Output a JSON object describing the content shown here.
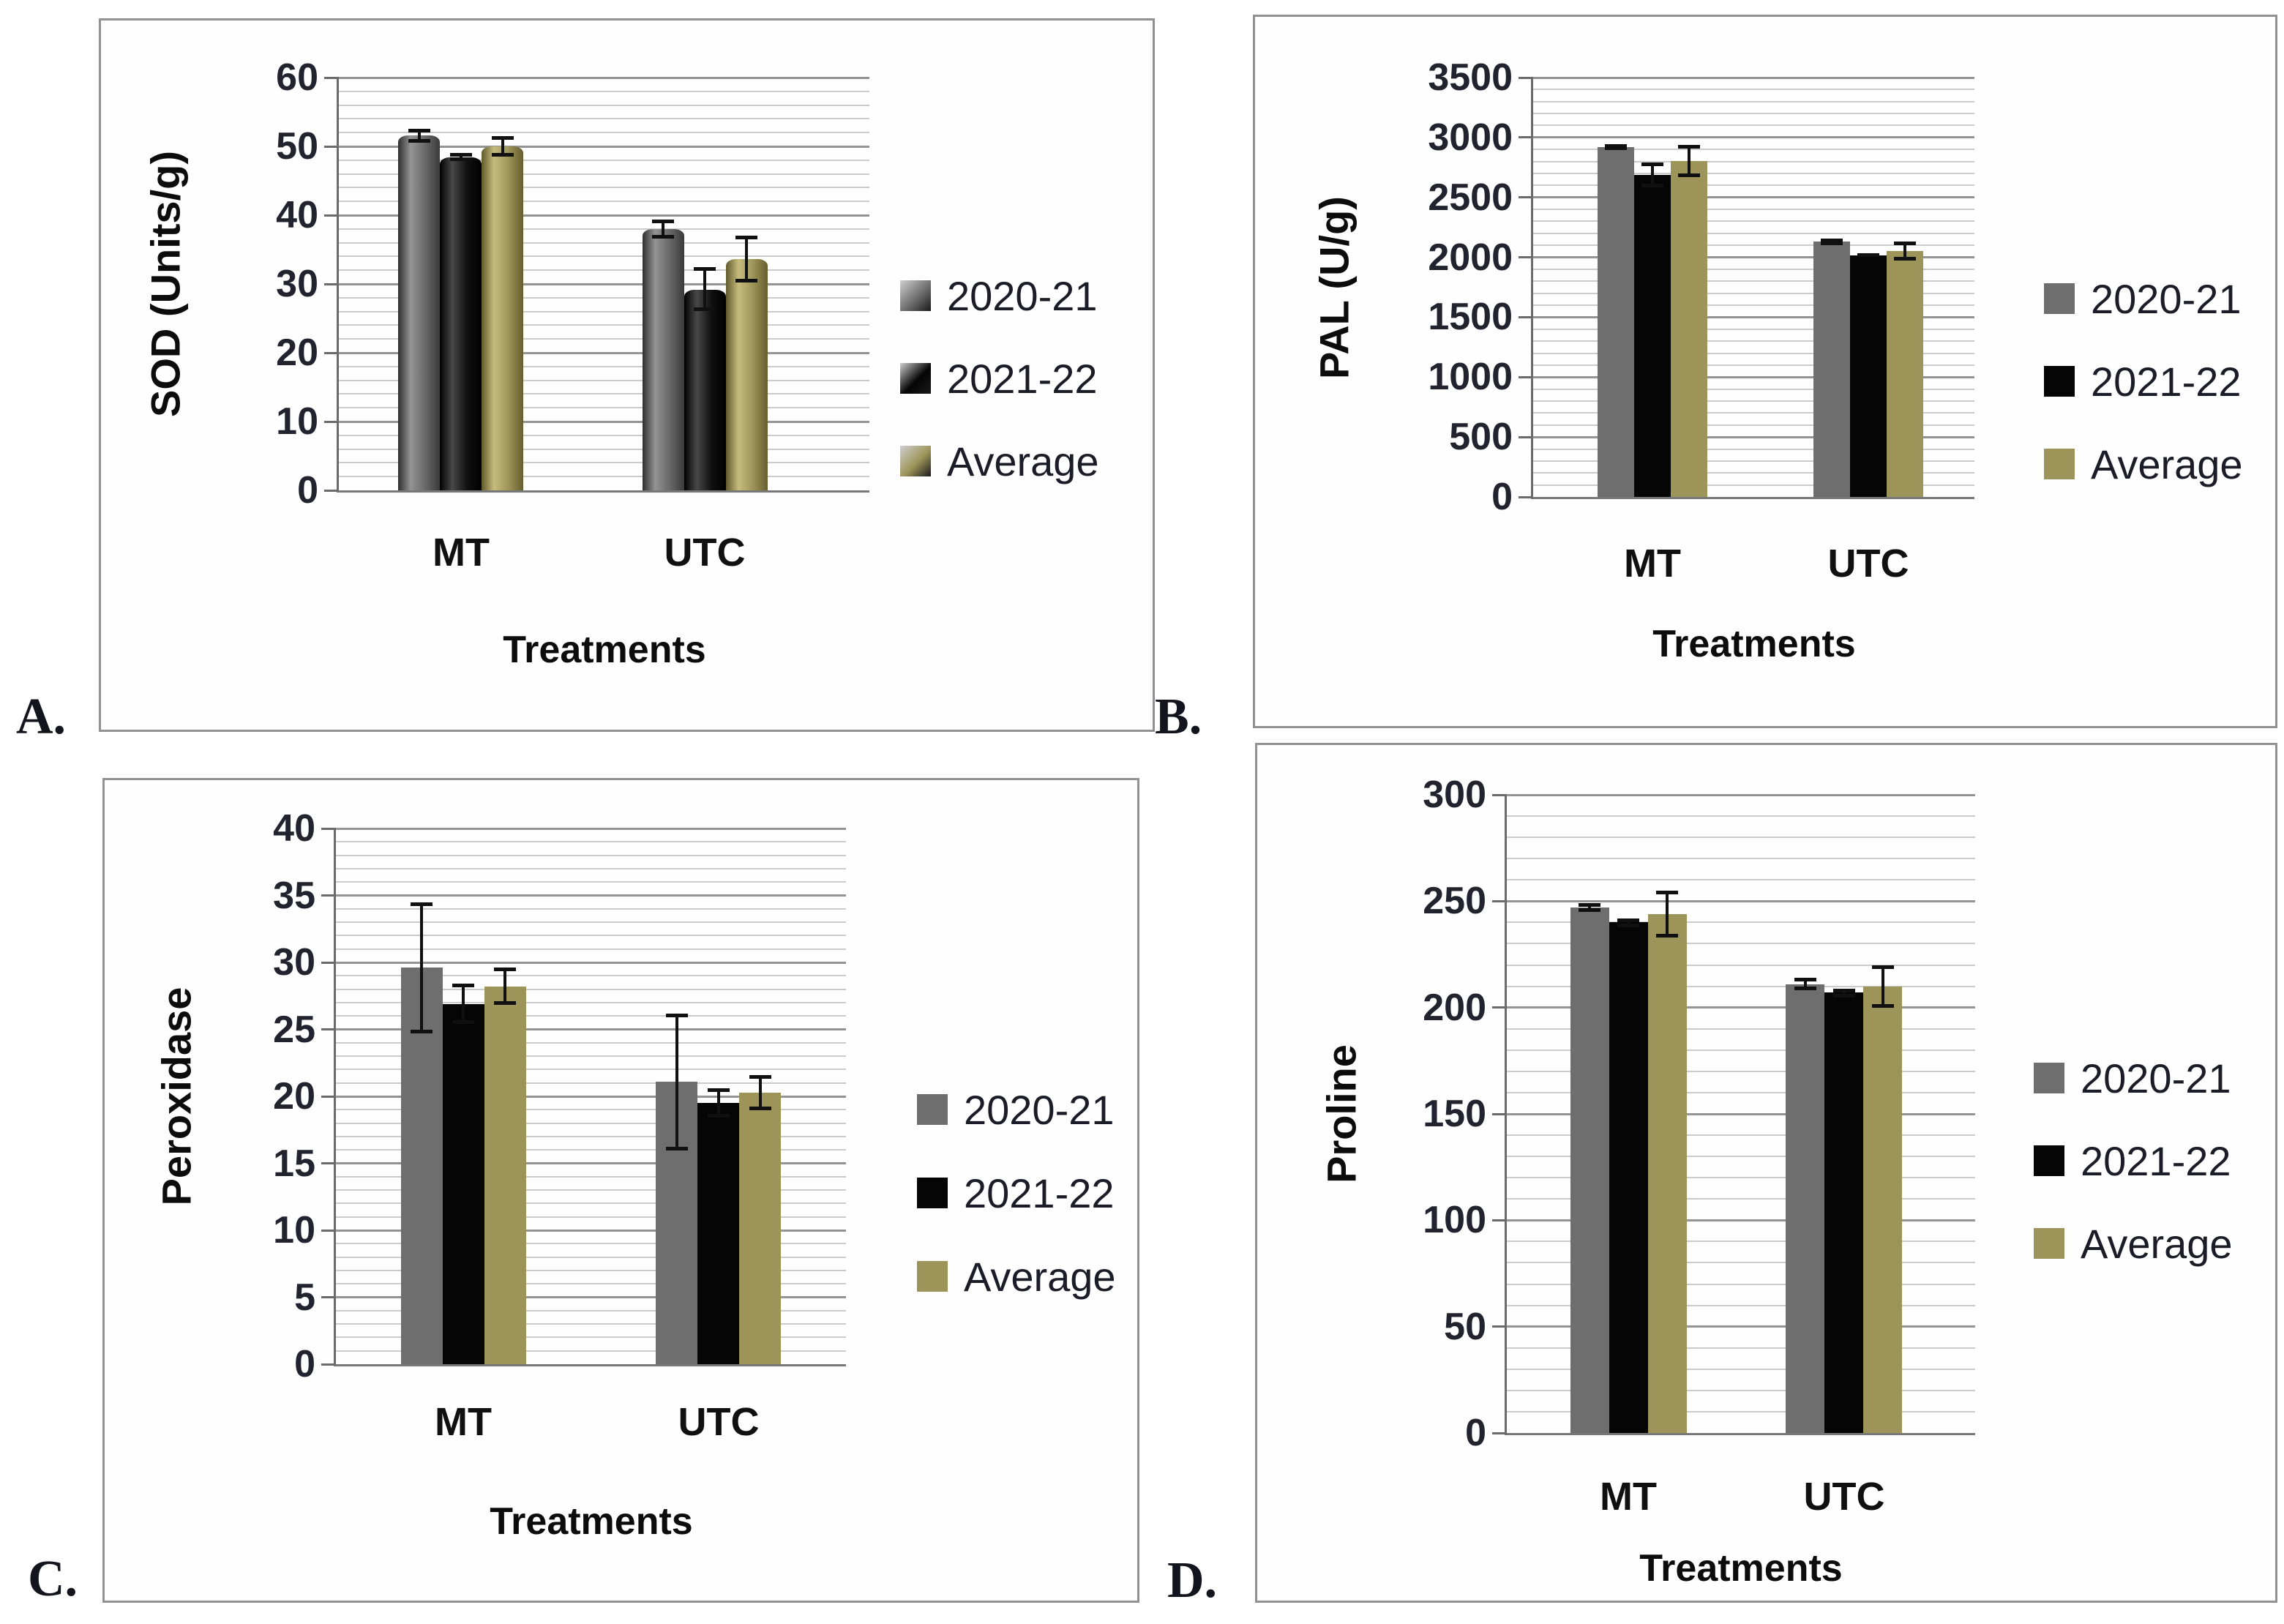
{
  "page": {
    "background": "#ffffff"
  },
  "chart_data": [
    {
      "id": "A",
      "panel_label": "A.",
      "type": "bar",
      "title": "",
      "ylabel": "SOD (Units/g)",
      "xlabel": "Treatments",
      "categories": [
        "MT",
        "UTC"
      ],
      "ylim": [
        0,
        60
      ],
      "ytick_interval": 10,
      "minor_gridline_interval": 2,
      "grid": true,
      "legend_position": "right",
      "bar_finish": "beveled",
      "error_bars": true,
      "series": [
        {
          "name": "2020-21",
          "color": "#6e6e6e",
          "values": [
            51.6,
            38.0
          ],
          "errors": [
            1.0,
            1.4
          ]
        },
        {
          "name": "2021-22",
          "color": "#050505",
          "values": [
            48.4,
            29.2
          ],
          "errors": [
            0.6,
            3.2
          ]
        },
        {
          "name": "Average",
          "color": "#9d9459",
          "values": [
            50.0,
            33.6
          ],
          "errors": [
            1.5,
            3.4
          ]
        }
      ]
    },
    {
      "id": "B",
      "panel_label": "B.",
      "type": "bar",
      "title": "",
      "ylabel": "PAL (U/g)",
      "xlabel": "Treatments",
      "categories": [
        "MT",
        "UTC"
      ],
      "ylim": [
        0,
        3500
      ],
      "ytick_interval": 500,
      "minor_gridline_interval": 100,
      "grid": true,
      "legend_position": "right",
      "bar_finish": "flat",
      "error_bars": true,
      "series": [
        {
          "name": "2020-21",
          "color": "#6e6e6e",
          "values": [
            2918,
            2132
          ],
          "errors": [
            25,
            27
          ]
        },
        {
          "name": "2021-22",
          "color": "#050505",
          "values": [
            2687,
            2016
          ],
          "errors": [
            105,
            15
          ]
        },
        {
          "name": "Average",
          "color": "#9d9459",
          "values": [
            2802,
            2051
          ],
          "errors": [
            135,
            80
          ]
        }
      ]
    },
    {
      "id": "C",
      "panel_label": "C.",
      "type": "bar",
      "title": "",
      "ylabel": "Peroxidase",
      "xlabel": "Treatments",
      "categories": [
        "MT",
        "UTC"
      ],
      "ylim": [
        0,
        40
      ],
      "ytick_interval": 5,
      "minor_gridline_interval": 1,
      "grid": true,
      "legend_position": "right",
      "bar_finish": "flat",
      "error_bars": true,
      "series": [
        {
          "name": "2020-21",
          "color": "#6e6e6e",
          "values": [
            29.6,
            21.1
          ],
          "errors": [
            4.9,
            5.1
          ]
        },
        {
          "name": "2021-22",
          "color": "#050505",
          "values": [
            26.9,
            19.5
          ],
          "errors": [
            1.5,
            1.1
          ]
        },
        {
          "name": "Average",
          "color": "#9d9459",
          "values": [
            28.2,
            20.3
          ],
          "errors": [
            1.4,
            1.3
          ]
        }
      ]
    },
    {
      "id": "D",
      "panel_label": "D.",
      "type": "bar",
      "title": "",
      "ylabel": "Proline",
      "xlabel": "Treatments",
      "categories": [
        "MT",
        "UTC"
      ],
      "ylim": [
        0,
        300
      ],
      "ytick_interval": 50,
      "minor_gridline_interval": 10,
      "grid": true,
      "legend_position": "right",
      "bar_finish": "flat",
      "error_bars": true,
      "series": [
        {
          "name": "2020-21",
          "color": "#6e6e6e",
          "values": [
            247,
            211
          ],
          "errors": [
            2,
            3
          ]
        },
        {
          "name": "2021-22",
          "color": "#050505",
          "values": [
            240,
            207
          ],
          "errors": [
            2,
            2
          ]
        },
        {
          "name": "Average",
          "color": "#9d9459",
          "values": [
            244,
            210
          ],
          "errors": [
            11,
            10
          ]
        }
      ]
    }
  ]
}
